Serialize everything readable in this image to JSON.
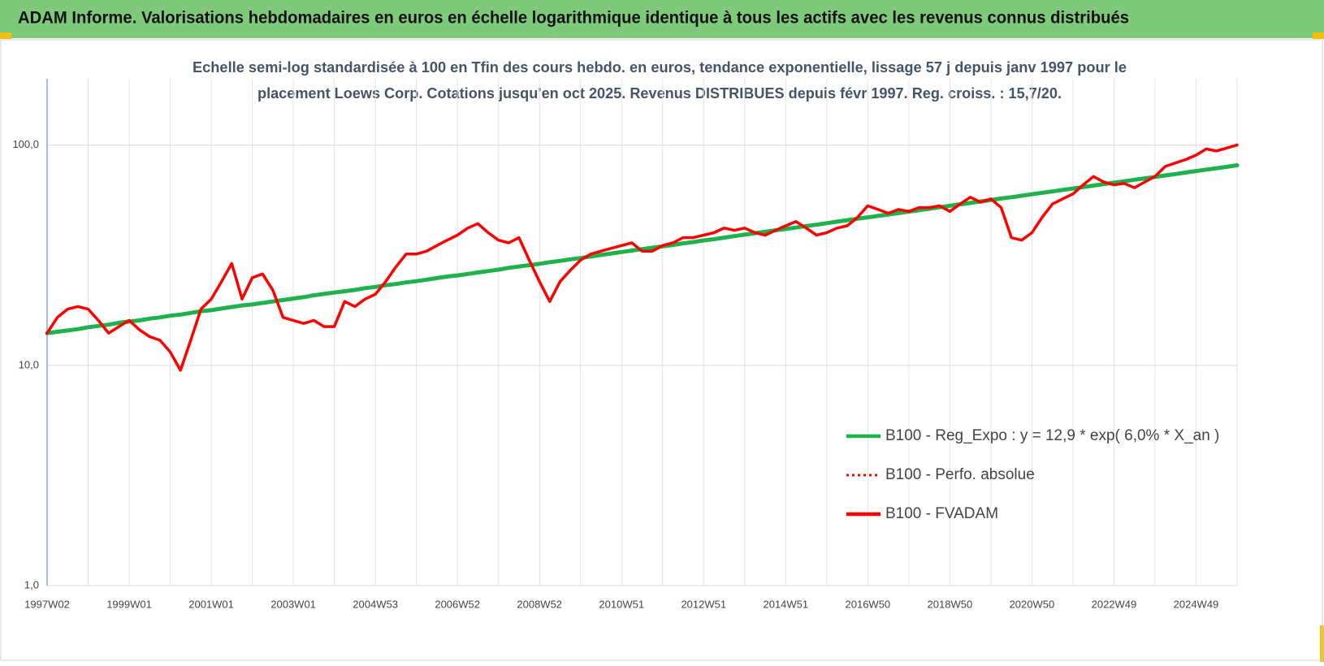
{
  "header": {
    "title": "ADAM Informe. Valorisations hebdomadaires en euros en échelle logarithmique identique à tous les actifs avec les revenus connus distribués"
  },
  "chart_data": {
    "type": "line",
    "subtitle": [
      "Echelle semi-log standardisée à 100 en Tfin des cours hebdo. en euros, tendance exponentielle, lissage 57 j depuis janv 1997 pour le",
      "placement Loews Corp. Cotations jusqu'en oct 2025. Revenus DISTRIBUES depuis févr 1997. Reg. croiss. : 15,7/20."
    ],
    "log_scale": true,
    "grid": true,
    "legend": "lower right",
    "ylim": [
      1,
      200
    ],
    "yticks": [
      {
        "value": 1,
        "label": "1,0"
      },
      {
        "value": 10,
        "label": "10,0"
      },
      {
        "value": 100,
        "label": "100,0"
      }
    ],
    "categories": [
      "1997W02",
      null,
      null,
      null,
      null,
      null,
      null,
      null,
      "1999W01",
      null,
      null,
      null,
      null,
      null,
      null,
      null,
      "2001W01",
      null,
      null,
      null,
      null,
      null,
      null,
      null,
      "2003W01",
      null,
      null,
      null,
      null,
      null,
      null,
      null,
      "2004W53",
      null,
      null,
      null,
      null,
      null,
      null,
      null,
      "2006W52",
      null,
      null,
      null,
      null,
      null,
      null,
      null,
      "2008W52",
      null,
      null,
      null,
      null,
      null,
      null,
      null,
      "2010W51",
      null,
      null,
      null,
      null,
      null,
      null,
      null,
      "2012W51",
      null,
      null,
      null,
      null,
      null,
      null,
      null,
      "2014W51",
      null,
      null,
      null,
      null,
      null,
      null,
      null,
      "2016W50",
      null,
      null,
      null,
      null,
      null,
      null,
      null,
      "2018W50",
      null,
      null,
      null,
      null,
      null,
      null,
      null,
      "2020W50",
      null,
      null,
      null,
      null,
      null,
      null,
      null,
      "2022W49",
      null,
      null,
      null,
      null,
      null,
      null,
      null,
      "2024W49",
      null,
      null,
      null,
      null
    ],
    "series": [
      {
        "name": "B100 - Reg_Expo : y = 12,9 * exp( 6,0% *  X_an )",
        "color": "#1fb14b",
        "style": "solid",
        "values": [
          14.0,
          14.2,
          14.4,
          14.6,
          14.9,
          15.1,
          15.3,
          15.6,
          15.8,
          16.0,
          16.3,
          16.5,
          16.8,
          17.0,
          17.3,
          17.6,
          17.8,
          18.1,
          18.4,
          18.7,
          18.9,
          19.2,
          19.5,
          19.8,
          20.1,
          20.4,
          20.8,
          21.1,
          21.4,
          21.7,
          22.0,
          22.4,
          22.7,
          23.1,
          23.4,
          23.8,
          24.1,
          24.5,
          24.9,
          25.3,
          25.6,
          26.0,
          26.4,
          26.8,
          27.2,
          27.7,
          28.1,
          28.5,
          28.9,
          29.4,
          29.8,
          30.3,
          30.7,
          31.2,
          31.7,
          32.2,
          32.7,
          33.2,
          33.7,
          34.2,
          34.7,
          35.2,
          35.8,
          36.3,
          36.9,
          37.4,
          38.0,
          38.6,
          39.2,
          39.8,
          40.4,
          41.0,
          41.6,
          42.2,
          42.9,
          43.5,
          44.2,
          44.9,
          45.6,
          46.3,
          47.0,
          47.7,
          48.4,
          49.1,
          49.9,
          50.6,
          51.4,
          52.2,
          53.0,
          53.8,
          54.6,
          55.5,
          56.3,
          57.2,
          58.0,
          58.9,
          59.8,
          60.7,
          61.6,
          62.6,
          63.5,
          64.5,
          65.5,
          66.5,
          67.5,
          68.5,
          69.6,
          70.6,
          71.7,
          72.8,
          73.9,
          75.1,
          76.2,
          77.4,
          78.5,
          79.7,
          81.0
        ]
      },
      {
        "name": "B100 - Perfo. absolue",
        "color": "#ff0000",
        "style": "dotted",
        "values": [
          14,
          16.5,
          18,
          18.5,
          18,
          16,
          14,
          15,
          16,
          14.5,
          13.5,
          13,
          11.5,
          9.5,
          13,
          18,
          20,
          24,
          29,
          20,
          25,
          26,
          22,
          16.5,
          16,
          15.5,
          16,
          15,
          15,
          19.5,
          18.5,
          20,
          21,
          24,
          28,
          32,
          32,
          33,
          35,
          37,
          39,
          42,
          44,
          40,
          37,
          36,
          38,
          30,
          24,
          19.5,
          24,
          27,
          30,
          32,
          33,
          34,
          35,
          36,
          33,
          33,
          35,
          36,
          38,
          38,
          39,
          40,
          42,
          41,
          42,
          40,
          39,
          41,
          43,
          45,
          42,
          39,
          40,
          42,
          43,
          47,
          53,
          51,
          49,
          51,
          50,
          52,
          52,
          53,
          50,
          54,
          58,
          55,
          57,
          52,
          38,
          37,
          40,
          47,
          54,
          57,
          60,
          66,
          72,
          68,
          66,
          67,
          64,
          68,
          72,
          80,
          83,
          86,
          90,
          96,
          94,
          97,
          100
        ]
      },
      {
        "name": "B100 - FVADAM",
        "color": "#ff0000",
        "style": "solid",
        "values": [
          14,
          16.5,
          18,
          18.5,
          18,
          16,
          14,
          15,
          16,
          14.5,
          13.5,
          13,
          11.5,
          9.5,
          13,
          18,
          20,
          24,
          29,
          20,
          25,
          26,
          22,
          16.5,
          16,
          15.5,
          16,
          15,
          15,
          19.5,
          18.5,
          20,
          21,
          24,
          28,
          32,
          32,
          33,
          35,
          37,
          39,
          42,
          44,
          40,
          37,
          36,
          38,
          30,
          24,
          19.5,
          24,
          27,
          30,
          32,
          33,
          34,
          35,
          36,
          33,
          33,
          35,
          36,
          38,
          38,
          39,
          40,
          42,
          41,
          42,
          40,
          39,
          41,
          43,
          45,
          42,
          39,
          40,
          42,
          43,
          47,
          53,
          51,
          49,
          51,
          50,
          52,
          52,
          53,
          50,
          54,
          58,
          55,
          57,
          52,
          38,
          37,
          40,
          47,
          54,
          57,
          60,
          66,
          72,
          68,
          66,
          67,
          64,
          68,
          72,
          80,
          83,
          86,
          90,
          96,
          94,
          97,
          100
        ]
      }
    ]
  }
}
